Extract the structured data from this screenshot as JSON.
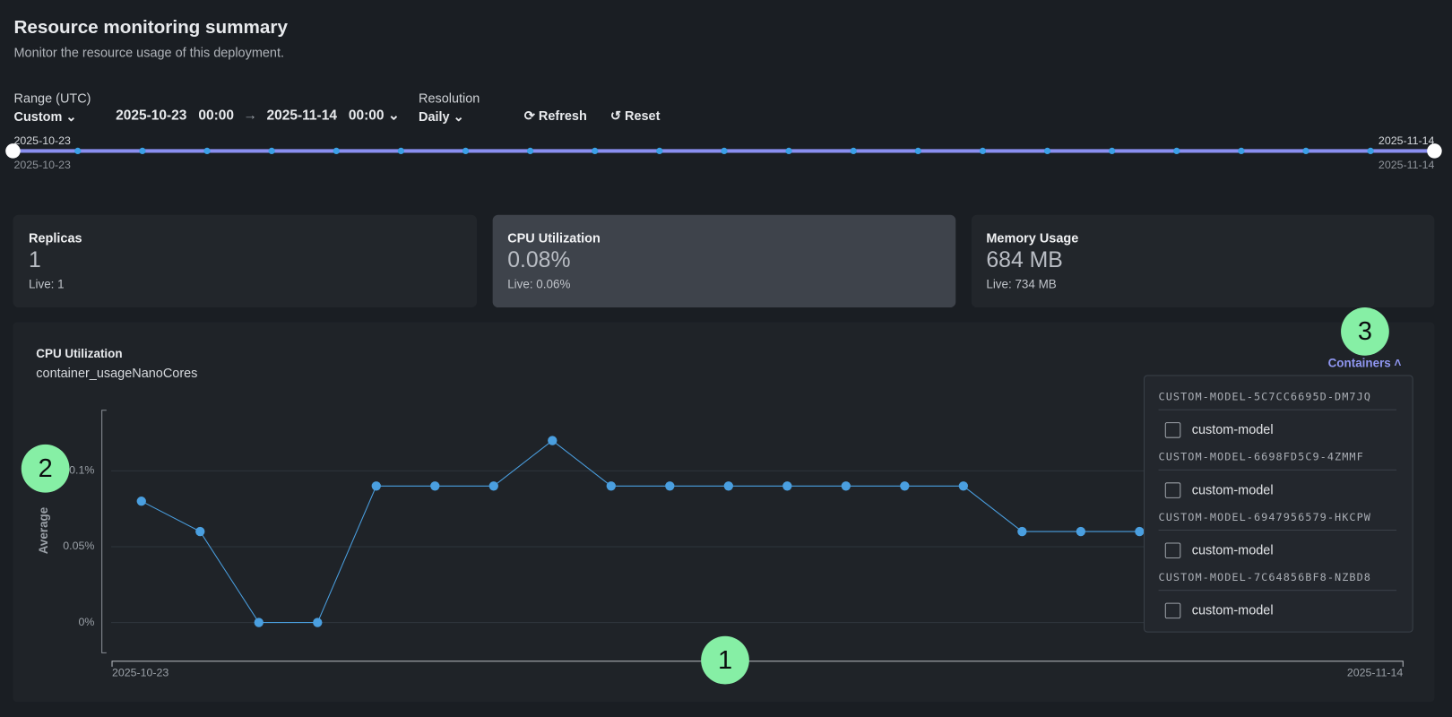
{
  "header": {
    "title": "Resource monitoring summary",
    "subtitle": "Monitor the resource usage of this deployment."
  },
  "controls": {
    "range_label": "Range (UTC)",
    "range_value": "Custom",
    "start_date": "2025-10-23",
    "start_time": "00:00",
    "end_date": "2025-11-14",
    "end_time": "00:00",
    "resolution_label": "Resolution",
    "resolution_value": "Daily",
    "refresh": "Refresh",
    "reset": "Reset"
  },
  "slider": {
    "start_top": "2025-10-23",
    "start_bottom": "2025-10-23",
    "end_top": "2025-11-14",
    "end_bottom": "2025-11-14"
  },
  "cards": [
    {
      "title": "Replicas",
      "value": "1",
      "live": "Live: 1"
    },
    {
      "title": "CPU Utilization",
      "value": "0.08%",
      "live": "Live: 0.06%"
    },
    {
      "title": "Memory Usage",
      "value": "684 MB",
      "live": "Live: 734 MB"
    }
  ],
  "chart_data": {
    "type": "line",
    "title": "CPU Utilization",
    "subtitle": "container_usageNanoCores",
    "y_label": "Average",
    "xlim": [
      "2025-10-23",
      "2025-11-14"
    ],
    "ylim": [
      -0.02,
      0.14
    ],
    "yticks": [
      {
        "value": 0,
        "label": "0%"
      },
      {
        "value": 0.05,
        "label": "0.05%"
      },
      {
        "value": 0.1,
        "label": "0.1%"
      }
    ],
    "grid": true,
    "color": "#4a9fe0",
    "values": [
      0.08,
      0.06,
      0,
      0,
      0.09,
      0.09,
      0.09,
      0.12,
      0.09,
      0.09,
      0.09,
      0.09,
      0.09,
      0.09,
      0.09,
      0.06,
      0.06,
      0.06
    ]
  },
  "dropdown": {
    "button": "Containers",
    "groups": [
      {
        "name": "CUSTOM-MODEL-5C7CC6695D-DM7JQ",
        "item": "custom-model"
      },
      {
        "name": "CUSTOM-MODEL-6698FD5C9-4ZMMF",
        "item": "custom-model"
      },
      {
        "name": "CUSTOM-MODEL-6947956579-HKCPW",
        "item": "custom-model"
      },
      {
        "name": "CUSTOM-MODEL-7C64856BF8-NZBD8",
        "item": "custom-model"
      }
    ]
  },
  "badges": [
    "1",
    "2",
    "3"
  ]
}
